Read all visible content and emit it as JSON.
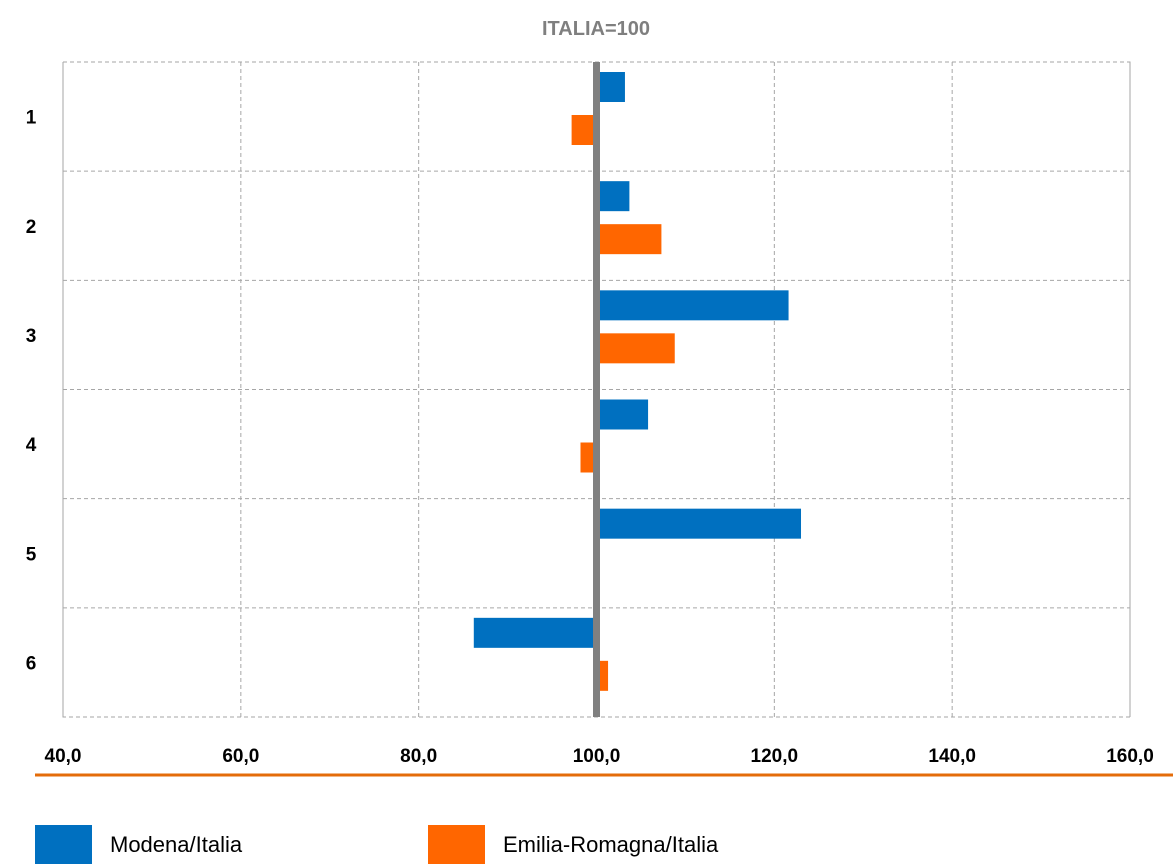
{
  "chart_data": {
    "type": "bar",
    "orientation": "horizontal",
    "title": "ITALIA=100",
    "baseline": 100,
    "categories": [
      "1",
      "2",
      "3",
      "4",
      "5",
      "6"
    ],
    "series": [
      {
        "name": "Modena/Italia",
        "color": "#0070C0",
        "values": [
          103.2,
          103.7,
          121.6,
          105.8,
          123.0,
          86.2
        ]
      },
      {
        "name": "Emilia-Romagna/Italia",
        "color": "#FF6600",
        "values": [
          97.2,
          107.3,
          108.8,
          98.2,
          100.0,
          101.3
        ]
      }
    ],
    "xlim": [
      40,
      160
    ],
    "xticks": [
      "40,0",
      "60,0",
      "80,0",
      "100,0",
      "120,0",
      "140,0",
      "160,0"
    ],
    "grid": true,
    "legend_position": "bottom"
  },
  "colors": {
    "baseline": "#808080",
    "grid": "#a6a6a6",
    "separator": "#E46C0A",
    "title": "#7f7f7f"
  }
}
